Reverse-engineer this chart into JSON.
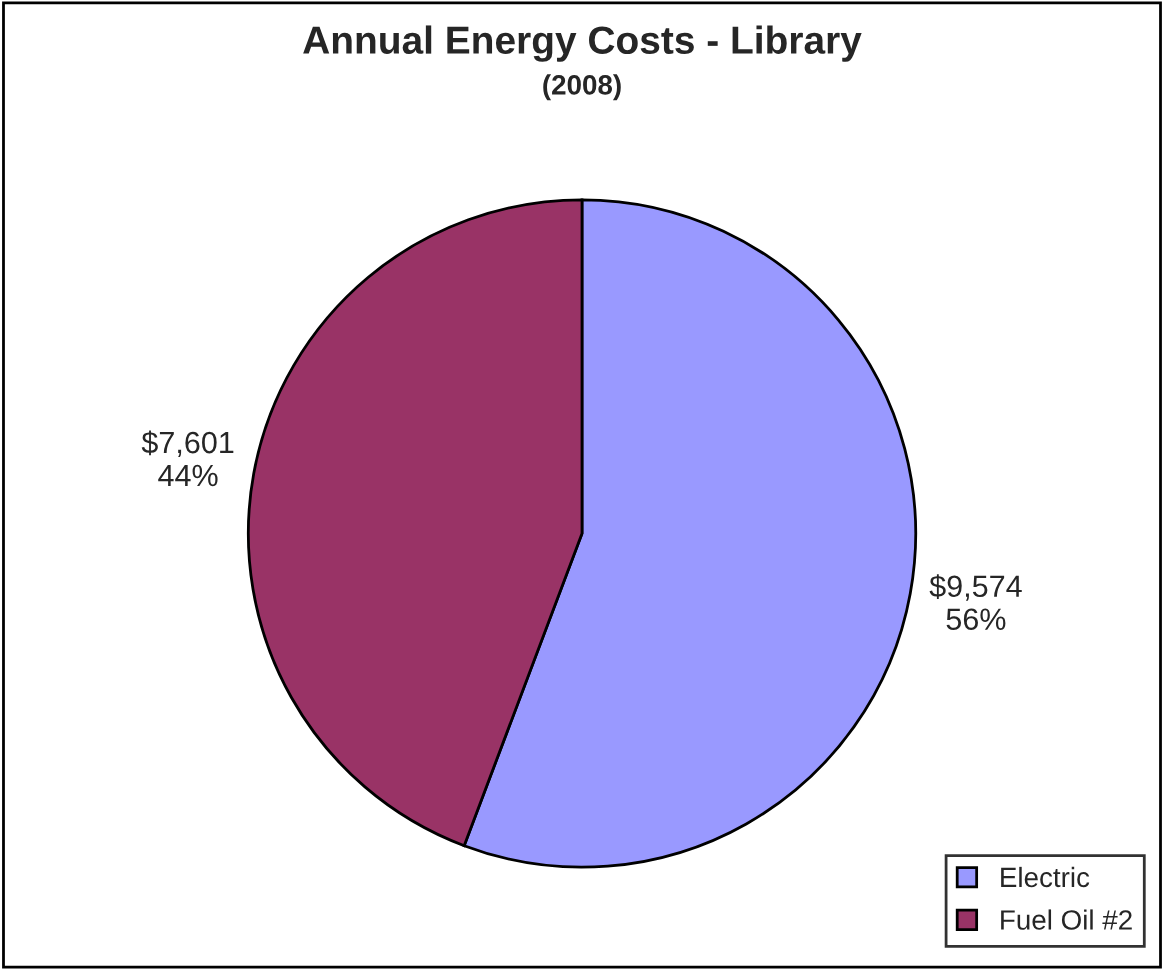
{
  "chart_data": {
    "type": "pie",
    "title": "Annual Energy Costs - Library",
    "subtitle": "(2008)",
    "categories": [
      "Electric",
      "Fuel Oil #2"
    ],
    "values": [
      9574,
      7601
    ],
    "colors": [
      "#9999ff",
      "#993366"
    ],
    "value_labels": [
      "$9,574\n56%",
      "$7,601\n44%"
    ],
    "legend": "bottom right"
  }
}
